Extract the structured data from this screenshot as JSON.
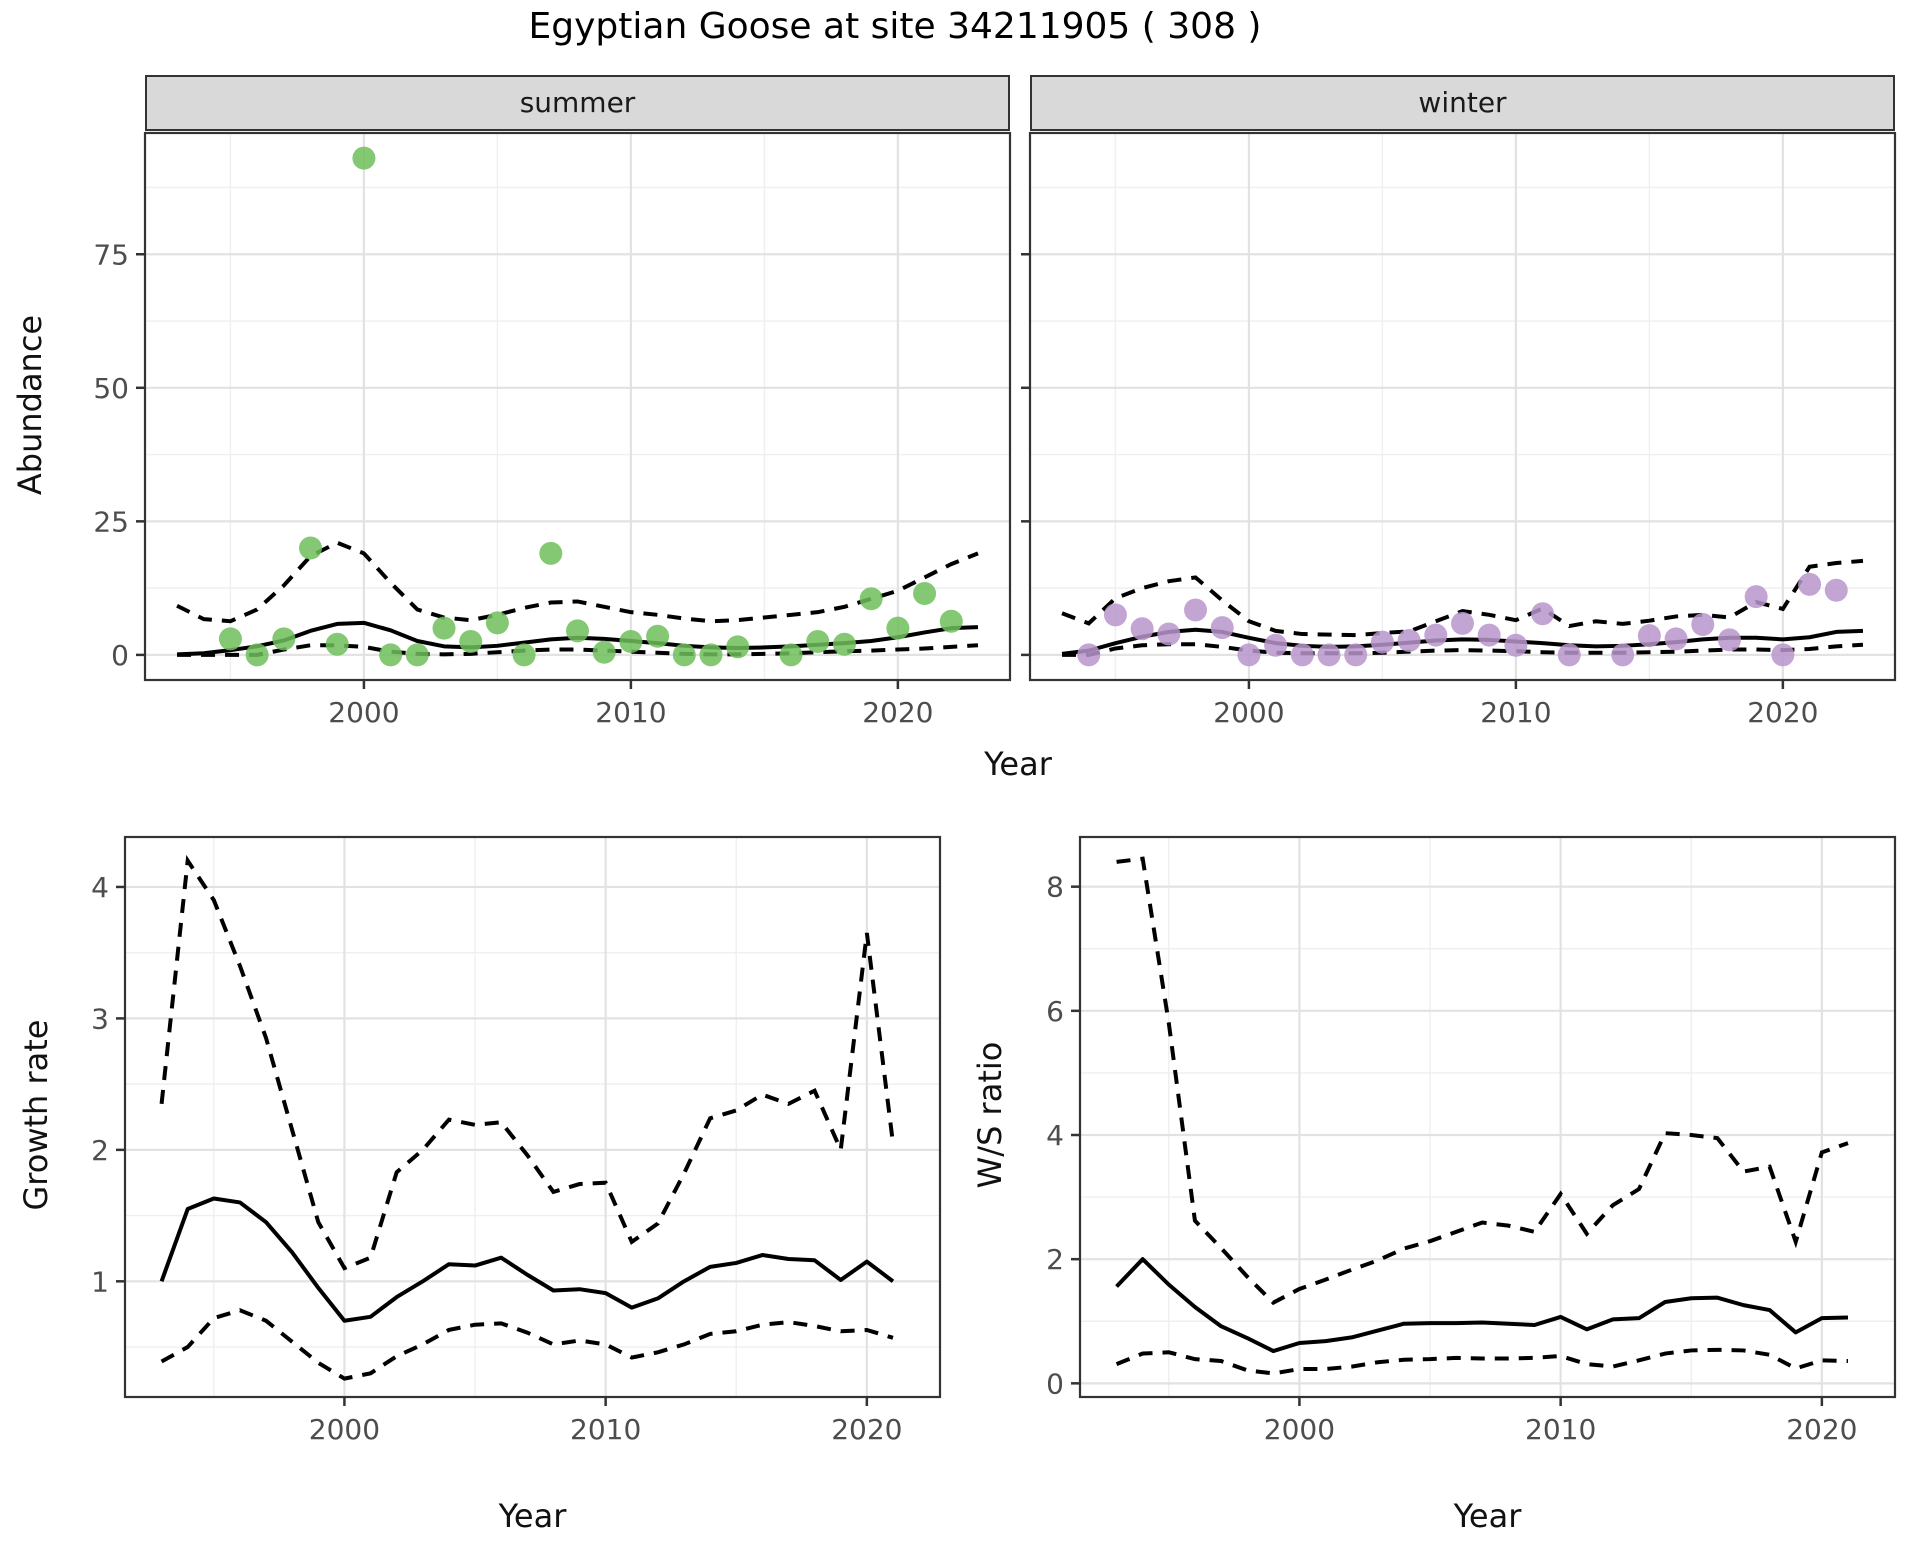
{
  "title": "Egyptian Goose at site 34211905 ( 308 )",
  "facets": {
    "summer": "summer",
    "winter": "winter"
  },
  "axis_titles": {
    "top_x": "Year",
    "top_y": "Abundance",
    "growth_x": "Year",
    "growth_y": "Growth rate",
    "ws_x": "Year",
    "ws_y": "W/S ratio"
  },
  "colors": {
    "summer_point": "#6ebe5c",
    "winter_point": "#b795ca",
    "line": "#000000",
    "strip_bg": "#d9d9d9",
    "panel_border": "#333333",
    "grid_major": "#e2e2e2",
    "grid_minor": "#efefef",
    "tick_text": "#4d4d4d"
  },
  "chart_data": [
    {
      "id": "abundance-summer",
      "type": "scatter",
      "facet": "summer",
      "xlabel": "Year",
      "ylabel": "Abundance",
      "xlim": [
        1991.8,
        2024.2
      ],
      "ylim": [
        -4.7,
        97.7
      ],
      "x_ticks": [
        2000,
        2010,
        2020
      ],
      "x_minor": [
        1995,
        2005,
        2015
      ],
      "y_ticks": [
        0,
        25,
        50,
        75
      ],
      "y_minor": [
        12.5,
        37.5,
        62.5,
        87.5
      ],
      "point_color": "#6ebe5c",
      "points": {
        "x": [
          1995,
          1996,
          1997,
          1998,
          1999,
          2000,
          2001,
          2002,
          2003,
          2004,
          2005,
          2006,
          2007,
          2008,
          2009,
          2010,
          2011,
          2012,
          2013,
          2014,
          2016,
          2017,
          2018,
          2019,
          2020,
          2021,
          2022
        ],
        "y": [
          3,
          0,
          3,
          20,
          2,
          93,
          0,
          0,
          5,
          2.5,
          6,
          0,
          19,
          4.5,
          0.5,
          2.5,
          3.5,
          0,
          0,
          1.5,
          0,
          2.5,
          2,
          10.5,
          5,
          11.5,
          6.3
        ]
      },
      "line_x": [
        1993,
        1994,
        1995,
        1996,
        1997,
        1998,
        1999,
        2000,
        2001,
        2002,
        2003,
        2004,
        2005,
        2006,
        2007,
        2008,
        2009,
        2010,
        2011,
        2012,
        2013,
        2014,
        2015,
        2016,
        2017,
        2018,
        2019,
        2020,
        2021,
        2022,
        2023
      ],
      "fit": [
        0.1,
        0.3,
        0.9,
        1.6,
        2.7,
        4.5,
        5.8,
        6.0,
        4.6,
        2.6,
        1.6,
        1.4,
        1.7,
        2.3,
        2.9,
        3.2,
        3.0,
        2.6,
        2.2,
        1.7,
        1.4,
        1.3,
        1.4,
        1.6,
        1.9,
        2.2,
        2.6,
        3.3,
        4.2,
        5.0,
        5.2
      ],
      "ci_upper": [
        9.2,
        6.7,
        6.3,
        8.5,
        13,
        18.5,
        21,
        19,
        13.5,
        8.5,
        7,
        6.5,
        7.5,
        8.8,
        9.8,
        10,
        9,
        8,
        7.5,
        6.8,
        6.3,
        6.5,
        7,
        7.5,
        8,
        9,
        10.5,
        12,
        14.5,
        17,
        19
      ],
      "ci_lower": [
        0,
        0,
        0,
        0,
        1,
        1.8,
        1.8,
        1.5,
        0.6,
        0.2,
        0.1,
        0.2,
        0.5,
        0.8,
        1.0,
        1.0,
        0.8,
        0.6,
        0.4,
        0.2,
        0.1,
        0.1,
        0.2,
        0.3,
        0.5,
        0.7,
        0.8,
        1.0,
        1.2,
        1.5,
        1.8
      ]
    },
    {
      "id": "abundance-winter",
      "type": "scatter",
      "facet": "winter",
      "xlabel": "Year",
      "ylabel": "Abundance",
      "xlim": [
        1991.8,
        2024.2
      ],
      "ylim": [
        -4.7,
        97.7
      ],
      "x_ticks": [
        2000,
        2010,
        2020
      ],
      "x_minor": [
        1995,
        2005,
        2015
      ],
      "y_ticks": [
        0,
        25,
        50,
        75
      ],
      "y_minor": [
        12.5,
        37.5,
        62.5,
        87.5
      ],
      "point_color": "#b795ca",
      "points": {
        "x": [
          1994,
          1995,
          1996,
          1997,
          1998,
          1999,
          2000,
          2001,
          2002,
          2003,
          2004,
          2005,
          2006,
          2007,
          2008,
          2009,
          2010,
          2011,
          2012,
          2014,
          2015,
          2016,
          2017,
          2018,
          2019,
          2020,
          2021,
          2022
        ],
        "y": [
          0,
          7.5,
          4.9,
          3.9,
          8.4,
          5.1,
          0,
          1.8,
          0,
          0,
          0,
          2.4,
          2.7,
          3.7,
          5.9,
          3.7,
          1.8,
          7.7,
          0,
          0,
          3.6,
          3.0,
          5.7,
          2.8,
          10.9,
          0,
          13.2,
          12.1
        ]
      },
      "line_x": [
        1993,
        1994,
        1995,
        1996,
        1997,
        1998,
        1999,
        2000,
        2001,
        2002,
        2003,
        2004,
        2005,
        2006,
        2007,
        2008,
        2009,
        2010,
        2011,
        2012,
        2013,
        2014,
        2015,
        2016,
        2017,
        2018,
        2019,
        2020,
        2021,
        2022,
        2023
      ],
      "fit": [
        0.2,
        0.8,
        2.2,
        3.4,
        4.3,
        4.7,
        4.3,
        3.2,
        2.2,
        1.7,
        1.5,
        1.6,
        1.9,
        2.3,
        2.7,
        2.9,
        2.8,
        2.5,
        2.2,
        1.8,
        1.6,
        1.7,
        2.0,
        2.4,
        2.9,
        3.2,
        3.2,
        2.9,
        3.3,
        4.3,
        4.5
      ],
      "ci_upper": [
        7.8,
        5.9,
        10.6,
        12.5,
        13.8,
        14.5,
        10.2,
        6.3,
        4.5,
        3.9,
        3.8,
        3.7,
        4.1,
        4.4,
        6.3,
        8.2,
        7.5,
        6.5,
        8.7,
        5.4,
        6.3,
        5.8,
        6.4,
        7.2,
        7.5,
        7.0,
        9.9,
        8.6,
        16.5,
        17.2,
        17.6
      ],
      "ci_lower": [
        0,
        0,
        1.2,
        1.8,
        2.0,
        2.0,
        1.5,
        0.8,
        0.4,
        0.3,
        0.3,
        0.3,
        0.4,
        0.6,
        0.8,
        0.9,
        0.8,
        0.7,
        0.5,
        0.4,
        0.4,
        0.4,
        0.5,
        0.6,
        0.8,
        1.0,
        1.0,
        0.9,
        1.1,
        1.6,
        1.9
      ]
    },
    {
      "id": "growth-rate",
      "type": "line",
      "facet": "",
      "xlabel": "Year",
      "ylabel": "Growth rate",
      "xlim": [
        1991.6,
        2022.8
      ],
      "ylim": [
        0.12,
        4.38
      ],
      "x_ticks": [
        2000,
        2010,
        2020
      ],
      "x_minor": [
        1995,
        2005,
        2015
      ],
      "y_ticks": [
        1,
        2,
        3,
        4
      ],
      "y_minor": [
        0.5,
        1.5,
        2.5,
        3.5
      ],
      "point_color": "",
      "points": {
        "x": [],
        "y": []
      },
      "line_x": [
        1993,
        1994,
        1995,
        1996,
        1997,
        1998,
        1999,
        2000,
        2001,
        2002,
        2003,
        2004,
        2005,
        2006,
        2007,
        2008,
        2009,
        2010,
        2011,
        2012,
        2013,
        2014,
        2015,
        2016,
        2017,
        2018,
        2019,
        2020,
        2021
      ],
      "fit": [
        1.0,
        1.55,
        1.63,
        1.6,
        1.45,
        1.22,
        0.95,
        0.7,
        0.73,
        0.88,
        1.0,
        1.13,
        1.12,
        1.18,
        1.05,
        0.93,
        0.94,
        0.91,
        0.8,
        0.87,
        1.0,
        1.11,
        1.14,
        1.2,
        1.17,
        1.16,
        1.01,
        1.15,
        1.0
      ],
      "ci_upper": [
        2.35,
        4.2,
        3.9,
        3.4,
        2.85,
        2.15,
        1.45,
        1.1,
        1.18,
        1.83,
        2.0,
        2.23,
        2.19,
        2.21,
        1.96,
        1.68,
        1.74,
        1.75,
        1.3,
        1.44,
        1.82,
        2.24,
        2.3,
        2.42,
        2.35,
        2.45,
        2.0,
        3.65,
        2.05
      ],
      "ci_lower": [
        0.39,
        0.5,
        0.72,
        0.78,
        0.7,
        0.54,
        0.38,
        0.26,
        0.3,
        0.43,
        0.52,
        0.63,
        0.67,
        0.68,
        0.61,
        0.52,
        0.55,
        0.52,
        0.42,
        0.46,
        0.52,
        0.6,
        0.62,
        0.67,
        0.69,
        0.66,
        0.62,
        0.63,
        0.57
      ]
    },
    {
      "id": "ws-ratio",
      "type": "line",
      "facet": "",
      "xlabel": "Year",
      "ylabel": "W/S ratio",
      "xlim": [
        1991.6,
        2022.8
      ],
      "ylim": [
        -0.22,
        8.8
      ],
      "x_ticks": [
        2000,
        2010,
        2020
      ],
      "x_minor": [
        1995,
        2005,
        2015
      ],
      "y_ticks": [
        0,
        2,
        4,
        6,
        8
      ],
      "y_minor": [
        1,
        3,
        5,
        7
      ],
      "point_color": "",
      "points": {
        "x": [],
        "y": []
      },
      "line_x": [
        1993,
        1994,
        1995,
        1996,
        1997,
        1998,
        1999,
        2000,
        2001,
        2002,
        2003,
        2004,
        2005,
        2006,
        2007,
        2008,
        2009,
        2010,
        2011,
        2012,
        2013,
        2014,
        2015,
        2016,
        2017,
        2018,
        2019,
        2020,
        2021
      ],
      "fit": [
        1.56,
        2.0,
        1.59,
        1.23,
        0.92,
        0.73,
        0.52,
        0.65,
        0.68,
        0.74,
        0.85,
        0.96,
        0.97,
        0.97,
        0.98,
        0.96,
        0.94,
        1.07,
        0.87,
        1.03,
        1.05,
        1.31,
        1.37,
        1.38,
        1.26,
        1.18,
        0.82,
        1.05,
        1.06
      ],
      "ci_upper": [
        8.4,
        8.45,
        5.8,
        2.62,
        2.18,
        1.72,
        1.3,
        1.52,
        1.67,
        1.83,
        1.98,
        2.17,
        2.29,
        2.44,
        2.59,
        2.54,
        2.44,
        3.05,
        2.41,
        2.87,
        3.13,
        4.03,
        4.0,
        3.95,
        3.41,
        3.49,
        2.28,
        3.72,
        3.87
      ],
      "ci_lower": [
        0.31,
        0.48,
        0.5,
        0.39,
        0.36,
        0.21,
        0.16,
        0.23,
        0.23,
        0.27,
        0.34,
        0.38,
        0.39,
        0.41,
        0.4,
        0.4,
        0.41,
        0.44,
        0.31,
        0.27,
        0.37,
        0.48,
        0.53,
        0.54,
        0.53,
        0.46,
        0.24,
        0.37,
        0.36
      ]
    }
  ]
}
